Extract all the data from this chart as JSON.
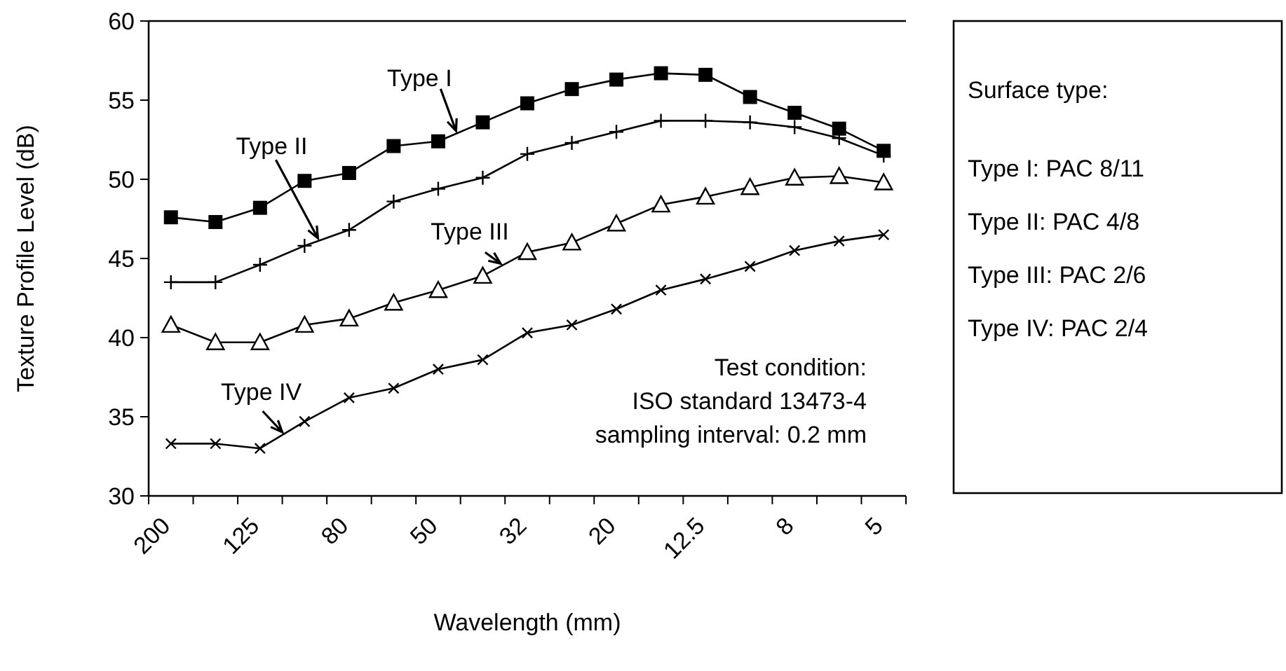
{
  "chart_data": {
    "type": "line",
    "xlabel": "Wavelength (mm)",
    "ylabel": "Texture Profile Level (dB)",
    "categories": [
      "200",
      null,
      "125",
      null,
      "80",
      null,
      "50",
      null,
      "32",
      null,
      "20",
      null,
      "12.5",
      null,
      "8",
      null,
      "5"
    ],
    "ylim": [
      30,
      60
    ],
    "yticks": [
      30,
      35,
      40,
      45,
      50,
      55,
      60
    ],
    "grid": false,
    "series": [
      {
        "name": "Type I",
        "color": "#000000",
        "marker": "square",
        "values": [
          47.6,
          47.3,
          48.2,
          49.9,
          50.4,
          52.1,
          52.4,
          53.6,
          54.8,
          55.7,
          56.3,
          56.7,
          56.6,
          55.2,
          54.2,
          53.2,
          51.8
        ]
      },
      {
        "name": "Type II",
        "color": "#000000",
        "marker": "cross",
        "values": [
          43.5,
          43.5,
          44.6,
          45.8,
          46.8,
          48.6,
          49.4,
          50.1,
          51.6,
          52.3,
          53.0,
          53.7,
          53.7,
          53.6,
          53.3,
          52.6,
          51.5
        ]
      },
      {
        "name": "Type III",
        "color": "#000000",
        "marker": "triangle",
        "values": [
          40.8,
          39.7,
          39.7,
          40.8,
          41.2,
          42.2,
          43.0,
          43.9,
          45.4,
          46.0,
          47.2,
          48.4,
          48.9,
          49.5,
          50.1,
          50.2,
          49.8
        ]
      },
      {
        "name": "Type IV",
        "color": "#000000",
        "marker": "x",
        "values": [
          33.3,
          33.3,
          33.0,
          34.7,
          36.2,
          36.8,
          38.0,
          38.6,
          40.3,
          40.8,
          41.8,
          43.0,
          43.7,
          44.5,
          45.5,
          46.1,
          46.5
        ]
      }
    ],
    "annotations": [
      "Test condition:",
      "ISO standard 13473-4",
      "sampling interval: 0.2 mm",
      "Surface type:",
      "Type I: PAC 8/11",
      "Type II: PAC 4/8",
      "Type III: PAC 2/6",
      "Type IV: PAC 2/4"
    ]
  }
}
